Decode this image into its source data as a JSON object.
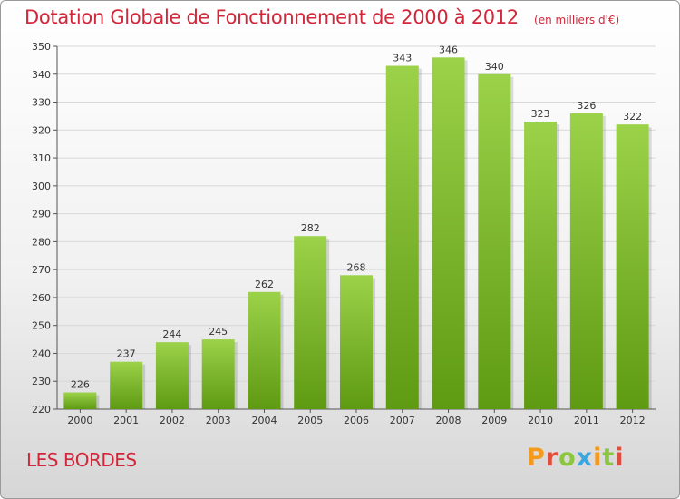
{
  "header": {
    "title": "Dotation Globale de Fonctionnement de 2000 à 2012",
    "unit": "(en milliers d'€)"
  },
  "footer": {
    "commune": "LES BORDES",
    "logo": "Proxiti"
  },
  "chart_data": {
    "type": "bar",
    "title": "Dotation Globale de Fonctionnement de 2000 à 2012",
    "subtitle": "(en milliers d'€)",
    "xlabel": "",
    "ylabel": "",
    "categories": [
      "2000",
      "2001",
      "2002",
      "2003",
      "2004",
      "2005",
      "2006",
      "2007",
      "2008",
      "2009",
      "2010",
      "2011",
      "2012"
    ],
    "values": [
      226,
      237,
      244,
      245,
      262,
      282,
      268,
      343,
      346,
      340,
      323,
      326,
      322
    ],
    "ylim": [
      220,
      350
    ],
    "yticks": [
      220,
      230,
      240,
      250,
      260,
      270,
      280,
      290,
      300,
      310,
      320,
      330,
      340,
      350
    ],
    "grid": true,
    "bar_color": "#7ab62e"
  }
}
